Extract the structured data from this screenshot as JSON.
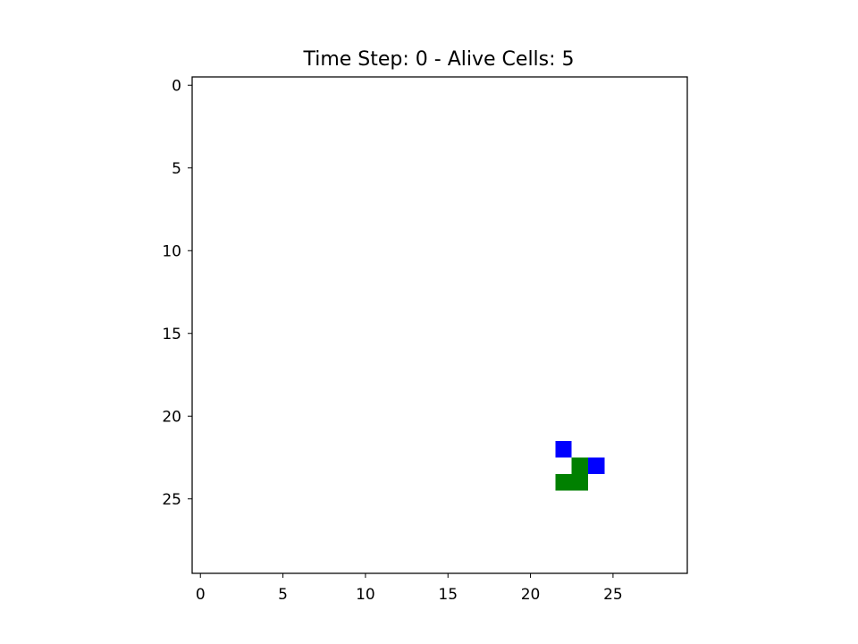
{
  "chart_data": {
    "type": "heatmap",
    "title": "Time Step: 0 - Alive Cells: 5",
    "grid_size": [
      30,
      30
    ],
    "x_range": [
      -0.5,
      29.5
    ],
    "y_range": [
      -0.5,
      29.5
    ],
    "y_axis_inverted": true,
    "x_ticks": [
      0,
      5,
      10,
      15,
      20,
      25
    ],
    "y_ticks": [
      0,
      5,
      10,
      15,
      20,
      25
    ],
    "x_tick_labels": [
      "0",
      "5",
      "10",
      "15",
      "20",
      "25"
    ],
    "y_tick_labels": [
      "0",
      "5",
      "10",
      "15",
      "20",
      "25"
    ],
    "background_color": "#ffffff",
    "cells": [
      {
        "x": 22,
        "y": 22,
        "color": "#0000ff"
      },
      {
        "x": 23,
        "y": 23,
        "color": "#008000"
      },
      {
        "x": 24,
        "y": 23,
        "color": "#0000ff"
      },
      {
        "x": 22,
        "y": 24,
        "color": "#008000"
      },
      {
        "x": 23,
        "y": 24,
        "color": "#008000"
      }
    ],
    "grid": false,
    "legend": false
  }
}
